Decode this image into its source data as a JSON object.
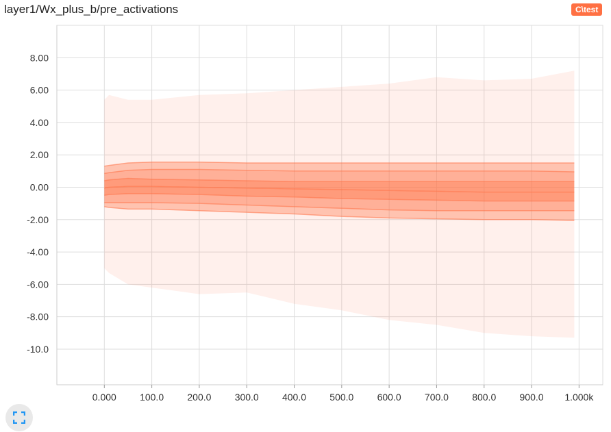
{
  "header": {
    "title": "layer1/Wx_plus_b/pre_activations",
    "run_tag": "C\\test"
  },
  "controls": {
    "fit_icon": "fit-to-screen-icon"
  },
  "chart_data": {
    "type": "area",
    "title": "layer1/Wx_plus_b/pre_activations",
    "xlabel": "",
    "ylabel": "",
    "xlim": [
      -100,
      1050
    ],
    "ylim": [
      -12.2,
      10.0
    ],
    "grid": true,
    "color": "#ff7043",
    "x_ticks": [
      0,
      100,
      200,
      300,
      400,
      500,
      600,
      700,
      800,
      900,
      1000
    ],
    "x_tick_labels": [
      "0.000",
      "100.0",
      "200.0",
      "300.0",
      "400.0",
      "500.0",
      "600.0",
      "700.0",
      "800.0",
      "900.0",
      "1.000k"
    ],
    "y_ticks": [
      8,
      6,
      4,
      2,
      0,
      -2,
      -4,
      -6,
      -8,
      -10
    ],
    "y_tick_labels": [
      "8.00",
      "6.00",
      "4.00",
      "2.00",
      "0.00",
      "-2.00",
      "-4.00",
      "-6.00",
      "-8.00",
      "-10.0"
    ],
    "x": [
      0,
      10,
      50,
      100,
      200,
      300,
      400,
      500,
      600,
      700,
      800,
      900,
      990
    ],
    "series": [
      {
        "values": [
          5.4,
          5.7,
          5.4,
          5.4,
          5.7,
          5.8,
          6.0,
          6.2,
          6.4,
          6.8,
          6.6,
          6.7,
          7.2
        ]
      },
      {
        "values": [
          1.3,
          1.35,
          1.5,
          1.55,
          1.55,
          1.5,
          1.5,
          1.5,
          1.5,
          1.5,
          1.5,
          1.5,
          1.5
        ]
      },
      {
        "values": [
          0.85,
          0.9,
          1.05,
          1.1,
          1.1,
          1.05,
          1.0,
          1.0,
          1.0,
          1.0,
          1.0,
          1.0,
          0.95
        ]
      },
      {
        "values": [
          0.4,
          0.45,
          0.55,
          0.5,
          0.45,
          0.4,
          0.35,
          0.35,
          0.35,
          0.35,
          0.35,
          0.35,
          0.35
        ]
      },
      {
        "values": [
          -0.05,
          0.0,
          0.05,
          0.05,
          0.0,
          -0.05,
          -0.1,
          -0.15,
          -0.2,
          -0.25,
          -0.3,
          -0.3,
          -0.3
        ]
      },
      {
        "values": [
          -0.5,
          -0.45,
          -0.4,
          -0.4,
          -0.45,
          -0.55,
          -0.6,
          -0.7,
          -0.75,
          -0.8,
          -0.85,
          -0.85,
          -0.85
        ]
      },
      {
        "values": [
          -0.95,
          -0.95,
          -0.95,
          -0.95,
          -1.0,
          -1.1,
          -1.2,
          -1.3,
          -1.4,
          -1.45,
          -1.45,
          -1.45,
          -1.45
        ]
      },
      {
        "values": [
          -1.2,
          -1.25,
          -1.35,
          -1.35,
          -1.45,
          -1.55,
          -1.65,
          -1.8,
          -1.9,
          -1.95,
          -2.0,
          -2.0,
          -2.05
        ]
      },
      {
        "values": [
          -5.0,
          -5.3,
          -6.0,
          -6.2,
          -6.6,
          -6.5,
          -7.2,
          -7.6,
          -8.2,
          -8.5,
          -9.0,
          -9.2,
          -9.3
        ]
      }
    ]
  }
}
